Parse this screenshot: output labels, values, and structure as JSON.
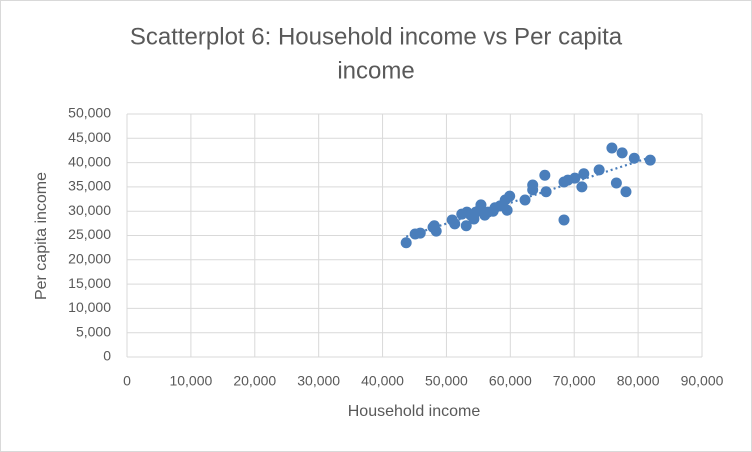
{
  "chart_data": {
    "type": "scatter",
    "title_lines": [
      "Scatterplot 6: Household income vs Per capita",
      "income"
    ],
    "x_label": "Household income",
    "y_label": "Per capita income",
    "color": "#4a7ebb",
    "trendline": true,
    "trendline_style": "dotted",
    "grid": true,
    "x": [
      43700,
      45100,
      45900,
      48100,
      48400,
      47900,
      50900,
      51300,
      52400,
      53200,
      53100,
      53800,
      54300,
      54600,
      55300,
      55400,
      56000,
      56500,
      57300,
      57600,
      58400,
      59200,
      59500,
      59900,
      62300,
      63500,
      63500,
      65400,
      65600,
      68400,
      68400,
      69000,
      70100,
      71200,
      71500,
      73900,
      75900,
      76600,
      77500,
      78100,
      79400,
      81900
    ],
    "y": [
      23500,
      25300,
      25500,
      27000,
      25900,
      26700,
      28200,
      27400,
      29400,
      29800,
      27000,
      29200,
      28400,
      29800,
      30500,
      31300,
      29200,
      29800,
      30000,
      30700,
      31100,
      32300,
      30200,
      33100,
      32300,
      34400,
      35400,
      37400,
      34000,
      28200,
      36000,
      36400,
      36800,
      35000,
      37700,
      38500,
      43000,
      35800,
      42000,
      34000,
      40900,
      40500
    ],
    "xlim": [
      0,
      90000
    ],
    "xticks": [
      {
        "value": 0,
        "label": "0"
      },
      {
        "value": 10000,
        "label": "10,000"
      },
      {
        "value": 20000,
        "label": "20,000"
      },
      {
        "value": 30000,
        "label": "30,000"
      },
      {
        "value": 40000,
        "label": "40,000"
      },
      {
        "value": 50000,
        "label": "50,000"
      },
      {
        "value": 60000,
        "label": "60,000"
      },
      {
        "value": 70000,
        "label": "70,000"
      },
      {
        "value": 80000,
        "label": "80,000"
      },
      {
        "value": 90000,
        "label": "90,000"
      }
    ],
    "ylim": [
      0,
      50000
    ],
    "yticks": [
      {
        "value": 0,
        "label": "0"
      },
      {
        "value": 5000,
        "label": "5,000"
      },
      {
        "value": 10000,
        "label": "10,000"
      },
      {
        "value": 15000,
        "label": "15,000"
      },
      {
        "value": 20000,
        "label": "20,000"
      },
      {
        "value": 25000,
        "label": "25,000"
      },
      {
        "value": 30000,
        "label": "30,000"
      },
      {
        "value": 35000,
        "label": "35,000"
      },
      {
        "value": 40000,
        "label": "40,000"
      },
      {
        "value": 45000,
        "label": "45,000"
      },
      {
        "value": 50000,
        "label": "50,000"
      }
    ]
  }
}
